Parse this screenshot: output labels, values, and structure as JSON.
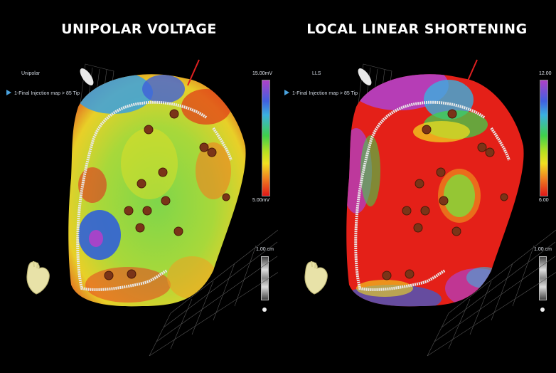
{
  "panels": [
    {
      "title": "UNIPOLAR VOLTAGE",
      "mode_label": "Unipolar",
      "map_name": "1-Final Injection map > 85 Tip",
      "scale_max": "15.00mV",
      "scale_min": "5.00mV",
      "ruler_label": "1.00 cm"
    },
    {
      "title": "LOCAL LINEAR SHORTENING",
      "mode_label": "LLS",
      "map_name": "1-Final Injection map > 85 Tip",
      "scale_max": "12.00",
      "scale_min": "6.00",
      "ruler_label": "1.00 cm"
    }
  ],
  "icons": {
    "play": "triangle-play-icon",
    "heart": "heart-3d-model-icon",
    "catheter": "catheter-tip-icon",
    "ruler": "ruler-scale-icon"
  },
  "colors": {
    "background": "#000000",
    "injection_marker": "#7a3418",
    "scar_border": "#e8e8e8"
  }
}
